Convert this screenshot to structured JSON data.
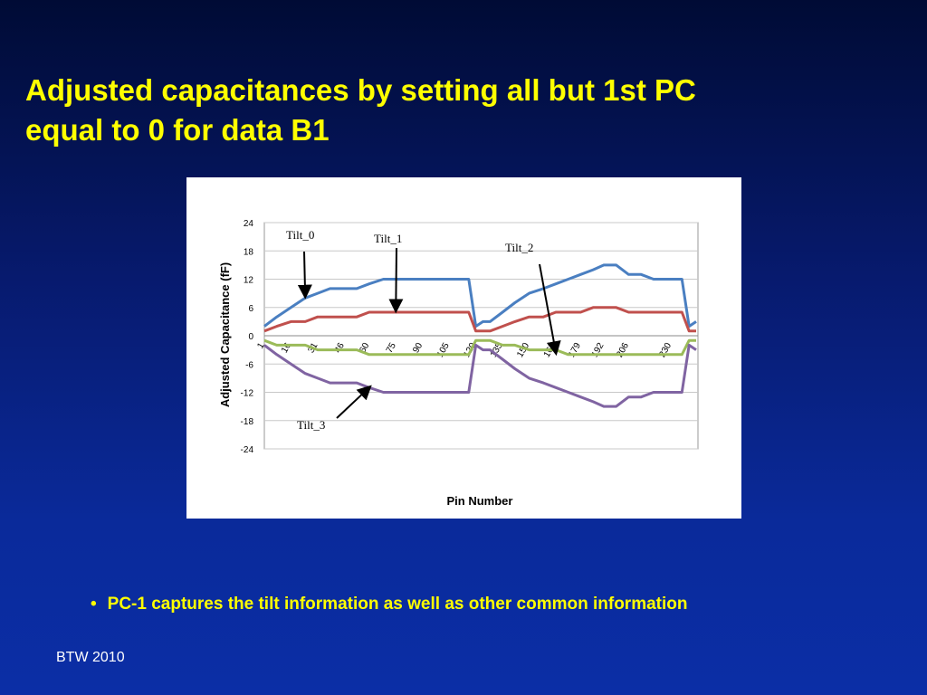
{
  "slide": {
    "title_line1": "Adjusted capacitances by setting all but 1st PC",
    "title_line2": "equal to 0 for data B1",
    "bullet_marker": "•",
    "bullet_text": "PC-1 captures the tilt information as well as other common information",
    "footer": "BTW 2010"
  },
  "colors": {
    "title": "#ffff00",
    "tilt_0": "#4a7fc1",
    "tilt_1": "#c0504d",
    "tilt_2": "#9bbb59",
    "tilt_3": "#8064a2"
  },
  "chart_data": {
    "type": "line",
    "xlabel": "Pin Number",
    "ylabel": "Adjusted  Capacitance  (fF)",
    "xlim": [
      1,
      245
    ],
    "ylim": [
      -24,
      24
    ],
    "y_ticks": [
      24,
      18,
      12,
      6,
      0,
      -6,
      -12,
      -18,
      -24
    ],
    "x_ticks": [
      1,
      16,
      31,
      46,
      60,
      75,
      90,
      105,
      120,
      135,
      150,
      165,
      179,
      192,
      206,
      230
    ],
    "grid": "horizontal",
    "legend": "none",
    "annotations": [
      "Tilt_0",
      "Tilt_1",
      "Tilt_2",
      "Tilt_3"
    ],
    "series": [
      {
        "name": "Tilt_0",
        "x": [
          1,
          8,
          16,
          24,
          31,
          38,
          46,
          53,
          60,
          68,
          75,
          83,
          90,
          98,
          105,
          112,
          116,
          120,
          124,
          128,
          135,
          142,
          150,
          158,
          165,
          172,
          179,
          186,
          192,
          199,
          206,
          213,
          220,
          226,
          230,
          236,
          240,
          244
        ],
        "y": [
          2,
          4,
          6,
          8,
          9,
          10,
          10,
          10,
          11,
          12,
          12,
          12,
          12,
          12,
          12,
          12,
          12,
          2,
          3,
          3,
          5,
          7,
          9,
          10,
          11,
          12,
          13,
          14,
          15,
          15,
          13,
          13,
          12,
          12,
          12,
          12,
          2,
          3
        ]
      },
      {
        "name": "Tilt_1",
        "x": [
          1,
          8,
          16,
          24,
          31,
          38,
          46,
          53,
          60,
          68,
          75,
          83,
          90,
          98,
          105,
          112,
          116,
          120,
          124,
          128,
          135,
          142,
          150,
          158,
          165,
          172,
          179,
          186,
          192,
          199,
          206,
          213,
          220,
          226,
          230,
          236,
          240,
          244
        ],
        "y": [
          1,
          2,
          3,
          3,
          4,
          4,
          4,
          4,
          5,
          5,
          5,
          5,
          5,
          5,
          5,
          5,
          5,
          1,
          1,
          1,
          2,
          3,
          4,
          4,
          5,
          5,
          5,
          6,
          6,
          6,
          5,
          5,
          5,
          5,
          5,
          5,
          1,
          1
        ]
      },
      {
        "name": "Tilt_2",
        "x": [
          1,
          8,
          16,
          24,
          31,
          38,
          46,
          53,
          60,
          68,
          75,
          83,
          90,
          98,
          105,
          112,
          116,
          120,
          124,
          128,
          135,
          142,
          150,
          158,
          165,
          172,
          179,
          186,
          192,
          199,
          206,
          213,
          220,
          226,
          230,
          236,
          240,
          244
        ],
        "y": [
          -1,
          -2,
          -2,
          -2,
          -3,
          -3,
          -3,
          -3,
          -4,
          -4,
          -4,
          -4,
          -4,
          -4,
          -4,
          -4,
          -4,
          -1,
          -1,
          -1,
          -2,
          -2,
          -3,
          -3,
          -3,
          -4,
          -4,
          -4,
          -4,
          -4,
          -4,
          -4,
          -4,
          -4,
          -4,
          -4,
          -1,
          -1
        ]
      },
      {
        "name": "Tilt_3",
        "x": [
          1,
          8,
          16,
          24,
          31,
          38,
          46,
          53,
          60,
          68,
          75,
          83,
          90,
          98,
          105,
          112,
          116,
          120,
          124,
          128,
          135,
          142,
          150,
          158,
          165,
          172,
          179,
          186,
          192,
          199,
          206,
          213,
          220,
          226,
          230,
          236,
          240,
          244
        ],
        "y": [
          -2,
          -4,
          -6,
          -8,
          -9,
          -10,
          -10,
          -10,
          -11,
          -12,
          -12,
          -12,
          -12,
          -12,
          -12,
          -12,
          -12,
          -2,
          -3,
          -3,
          -5,
          -7,
          -9,
          -10,
          -11,
          -12,
          -13,
          -14,
          -15,
          -15,
          -13,
          -13,
          -12,
          -12,
          -12,
          -12,
          -2,
          -3
        ]
      }
    ]
  }
}
